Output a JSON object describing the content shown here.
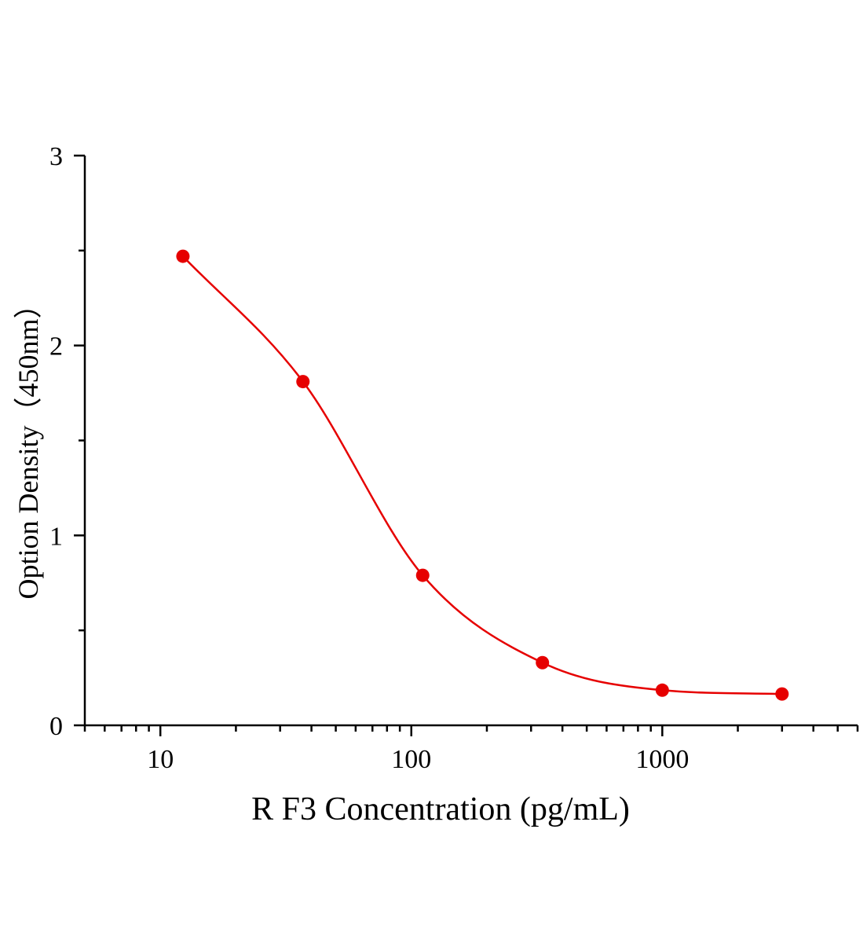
{
  "chart_data": {
    "type": "scatter",
    "xlabel": "R F3 Concentration (pg/mL)",
    "ylabel": "Option Density（450nm）",
    "xscale": "log",
    "xlim": [
      5,
      6000
    ],
    "ylim": [
      0,
      3
    ],
    "x_ticks": [
      "10",
      "100",
      "1000"
    ],
    "y_ticks": [
      "0",
      "1",
      "2",
      "3"
    ],
    "grid": false,
    "legend": "none",
    "series": [
      {
        "color": "#e60000",
        "fit": "4PL",
        "points": [
          {
            "x": 12.3,
            "y": 2.47
          },
          {
            "x": 37,
            "y": 1.81
          },
          {
            "x": 111,
            "y": 0.79
          },
          {
            "x": 333,
            "y": 0.33
          },
          {
            "x": 1000,
            "y": 0.185
          },
          {
            "x": 3000,
            "y": 0.165
          }
        ]
      }
    ]
  }
}
